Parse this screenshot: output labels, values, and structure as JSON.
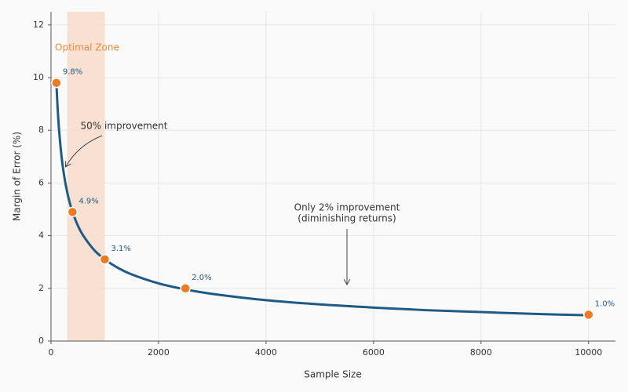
{
  "chart_data": {
    "type": "line",
    "xlabel": "Sample Size",
    "ylabel": "Margin of Error (%)",
    "xlim": [
      0,
      10500
    ],
    "ylim": [
      0,
      12.5
    ],
    "xticks": [
      0,
      2000,
      4000,
      6000,
      8000,
      10000
    ],
    "yticks": [
      0,
      2,
      4,
      6,
      8,
      10,
      12
    ],
    "grid": true,
    "curve": {
      "color": "#1f5a85",
      "x": [
        100,
        120,
        150,
        200,
        250,
        300,
        350,
        400,
        500,
        600,
        800,
        1000,
        1250,
        1500,
        2000,
        2500,
        3000,
        4000,
        5000,
        6000,
        7000,
        8000,
        9000,
        10000
      ],
      "values": [
        9.8,
        8.95,
        8.0,
        6.93,
        6.2,
        5.66,
        5.24,
        4.9,
        4.38,
        4.0,
        3.46,
        3.1,
        2.77,
        2.53,
        2.19,
        1.96,
        1.79,
        1.55,
        1.39,
        1.27,
        1.17,
        1.1,
        1.03,
        0.98
      ]
    },
    "points": {
      "color": "#f07a24",
      "label_color": "#1f5a85",
      "x": [
        100,
        400,
        1000,
        2500,
        10000
      ],
      "values": [
        9.8,
        4.9,
        3.1,
        2.0,
        1.0
      ],
      "value_labels": [
        "9.8%",
        "4.9%",
        "3.1%",
        "2.0%",
        "1.0%"
      ]
    },
    "span": {
      "xrange": [
        300,
        1000
      ],
      "label": "Optimal Zone",
      "color": "#f7dccb",
      "label_color": "#f08a3c"
    },
    "annotations": [
      {
        "text": [
          "50% improvement"
        ]
      },
      {
        "text": [
          "Only 2% improvement",
          "(diminishing returns)"
        ]
      }
    ]
  }
}
